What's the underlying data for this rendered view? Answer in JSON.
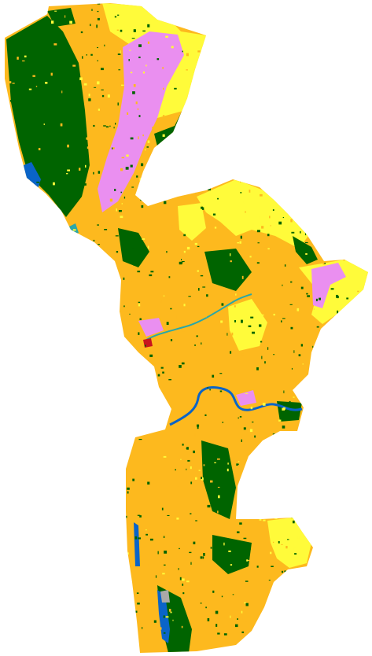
{
  "map": {
    "kind": "land-cover-classification",
    "background": "#ffffff",
    "classes": [
      {
        "id": "shrubland",
        "color": "#fdb91e"
      },
      {
        "id": "forest",
        "color": "#006400"
      },
      {
        "id": "grassland",
        "color": "#fffb3a"
      },
      {
        "id": "cropland",
        "color": "#ea8ff0"
      },
      {
        "id": "water",
        "color": "#0a64c8"
      },
      {
        "id": "wetland",
        "color": "#2aa7a7"
      },
      {
        "id": "built-up",
        "color": "#c8141e"
      },
      {
        "id": "bare",
        "color": "#a9a9a9"
      }
    ],
    "labels": []
  }
}
